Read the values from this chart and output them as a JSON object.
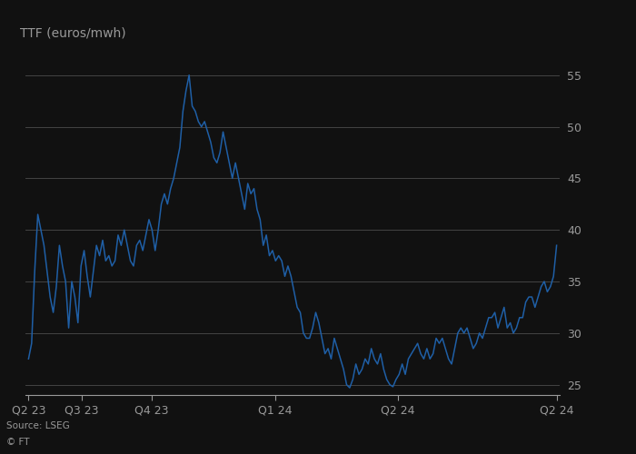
{
  "title": "TTF (euros/mwh)",
  "source": "Source: LSEG",
  "copyright": "© FT",
  "line_color": "#1f5fa6",
  "background_color": "#111111",
  "text_color": "#999999",
  "grid_color": "#444444",
  "ylim": [
    24,
    57
  ],
  "yticks": [
    25,
    30,
    35,
    40,
    45,
    50,
    55
  ],
  "x_tick_positions_norm": [
    0.0,
    0.1,
    0.233,
    0.467,
    0.7,
    1.0
  ],
  "x_tick_labels": [
    "Q2 23",
    "Q3 23",
    "Q4 23",
    "Q1 24",
    "Q2 24",
    "Q2 24"
  ],
  "data": [
    27.5,
    29.0,
    36.0,
    41.5,
    40.0,
    38.5,
    36.0,
    33.5,
    32.0,
    34.5,
    38.5,
    36.5,
    35.0,
    30.5,
    35.0,
    33.5,
    31.0,
    36.5,
    38.0,
    35.5,
    33.5,
    36.0,
    38.5,
    37.5,
    39.0,
    37.0,
    37.5,
    36.5,
    37.0,
    39.5,
    38.5,
    40.0,
    38.5,
    37.0,
    36.5,
    38.5,
    39.0,
    38.0,
    39.5,
    41.0,
    40.0,
    38.0,
    40.0,
    42.5,
    43.5,
    42.5,
    44.0,
    45.0,
    46.5,
    48.0,
    51.5,
    53.5,
    55.0,
    52.0,
    51.5,
    50.5,
    50.0,
    50.5,
    49.5,
    48.5,
    47.0,
    46.5,
    47.5,
    49.5,
    48.0,
    46.5,
    45.0,
    46.5,
    45.0,
    43.5,
    42.0,
    44.5,
    43.5,
    44.0,
    42.0,
    41.0,
    38.5,
    39.5,
    37.5,
    38.0,
    37.0,
    37.5,
    37.0,
    35.5,
    36.5,
    35.5,
    34.0,
    32.5,
    32.0,
    30.0,
    29.5,
    29.5,
    30.5,
    32.0,
    31.0,
    29.5,
    28.0,
    28.5,
    27.5,
    29.5,
    28.5,
    27.5,
    26.5,
    25.0,
    24.7,
    25.5,
    27.0,
    26.0,
    26.5,
    27.5,
    27.0,
    28.5,
    27.5,
    27.0,
    28.0,
    26.5,
    25.5,
    25.0,
    24.8,
    25.5,
    26.0,
    27.0,
    26.0,
    27.5,
    28.0,
    28.5,
    29.0,
    28.0,
    27.5,
    28.5,
    27.5,
    28.0,
    29.5,
    29.0,
    29.5,
    28.5,
    27.5,
    27.0,
    28.5,
    30.0,
    30.5,
    30.0,
    30.5,
    29.5,
    28.5,
    29.0,
    30.0,
    29.5,
    30.5,
    31.5,
    31.5,
    32.0,
    30.5,
    31.5,
    32.5,
    30.5,
    31.0,
    30.0,
    30.5,
    31.5,
    31.5,
    33.0,
    33.5,
    33.5,
    32.5,
    33.5,
    34.5,
    35.0,
    34.0,
    34.5,
    35.5,
    38.5
  ],
  "n_total": 172
}
